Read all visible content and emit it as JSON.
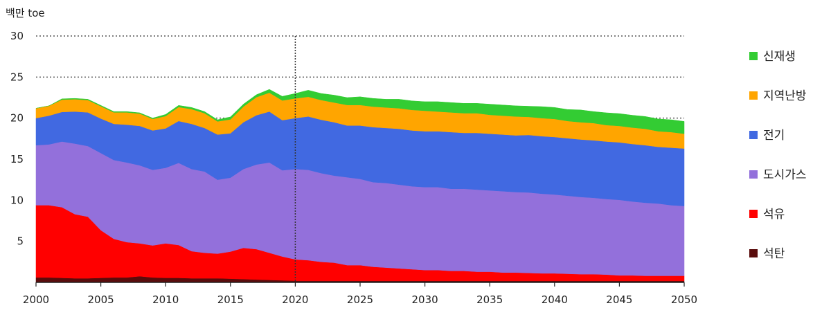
{
  "chart_data": {
    "type": "area",
    "stacked": true,
    "title": "",
    "ylabel": "백만 toe",
    "xlabel": "",
    "xlim": [
      2000,
      2050
    ],
    "ylim": [
      0,
      30
    ],
    "x_ticks": [
      2000,
      2005,
      2010,
      2015,
      2020,
      2025,
      2030,
      2035,
      2040,
      2045,
      2050
    ],
    "y_ticks": [
      5,
      10,
      15,
      20,
      25,
      30
    ],
    "gridlines": [
      20,
      25,
      30
    ],
    "grid_style": "dotted",
    "divider_x": 2020,
    "legend_position": "right",
    "x": [
      2000,
      2001,
      2002,
      2003,
      2004,
      2005,
      2006,
      2007,
      2008,
      2009,
      2010,
      2011,
      2012,
      2013,
      2014,
      2015,
      2016,
      2017,
      2018,
      2019,
      2020,
      2021,
      2022,
      2023,
      2024,
      2025,
      2026,
      2027,
      2028,
      2029,
      2030,
      2031,
      2032,
      2033,
      2034,
      2035,
      2036,
      2037,
      2038,
      2039,
      2040,
      2041,
      2042,
      2043,
      2044,
      2045,
      2046,
      2047,
      2048,
      2049,
      2050
    ],
    "series": [
      {
        "name": "석탄",
        "color": "#5a0c0c",
        "values": [
          0.6,
          0.6,
          0.55,
          0.5,
          0.5,
          0.55,
          0.6,
          0.6,
          0.75,
          0.6,
          0.55,
          0.55,
          0.5,
          0.5,
          0.5,
          0.45,
          0.4,
          0.35,
          0.3,
          0.25,
          0.2,
          0.2,
          0.2,
          0.2,
          0.2,
          0.2,
          0.2,
          0.2,
          0.2,
          0.2,
          0.2,
          0.2,
          0.2,
          0.2,
          0.2,
          0.2,
          0.2,
          0.2,
          0.2,
          0.2,
          0.2,
          0.2,
          0.2,
          0.2,
          0.2,
          0.2,
          0.2,
          0.2,
          0.2,
          0.2,
          0.2
        ]
      },
      {
        "name": "석유",
        "color": "#ff0000",
        "values": [
          8.8,
          8.8,
          8.6,
          7.8,
          7.5,
          5.8,
          4.7,
          4.3,
          4.0,
          3.9,
          4.2,
          4.0,
          3.3,
          3.1,
          3.0,
          3.3,
          3.8,
          3.7,
          3.3,
          2.9,
          2.6,
          2.5,
          2.3,
          2.2,
          1.9,
          1.9,
          1.7,
          1.6,
          1.5,
          1.4,
          1.3,
          1.3,
          1.2,
          1.2,
          1.1,
          1.1,
          1.0,
          1.0,
          0.95,
          0.9,
          0.9,
          0.85,
          0.8,
          0.8,
          0.75,
          0.65,
          0.65,
          0.6,
          0.6,
          0.6,
          0.6
        ]
      },
      {
        "name": "도시가스",
        "color": "#9370db",
        "values": [
          7.3,
          7.4,
          8.0,
          8.6,
          8.6,
          9.4,
          9.6,
          9.7,
          9.5,
          9.2,
          9.2,
          10.0,
          10.0,
          9.9,
          9.0,
          9.0,
          9.6,
          10.3,
          11.0,
          10.5,
          11.0,
          11.0,
          10.8,
          10.6,
          10.7,
          10.5,
          10.3,
          10.3,
          10.2,
          10.1,
          10.1,
          10.1,
          10.0,
          10.0,
          10.0,
          9.9,
          9.9,
          9.8,
          9.8,
          9.7,
          9.6,
          9.5,
          9.4,
          9.3,
          9.2,
          9.2,
          9.0,
          8.9,
          8.8,
          8.6,
          8.5
        ]
      },
      {
        "name": "전기",
        "color": "#4169e1",
        "values": [
          3.3,
          3.5,
          3.6,
          3.9,
          4.1,
          4.2,
          4.4,
          4.6,
          4.8,
          4.8,
          4.8,
          5.1,
          5.5,
          5.3,
          5.5,
          5.4,
          5.7,
          6.0,
          6.2,
          6.1,
          6.2,
          6.5,
          6.5,
          6.5,
          6.3,
          6.5,
          6.7,
          6.7,
          6.8,
          6.8,
          6.8,
          6.8,
          6.9,
          6.8,
          6.9,
          6.9,
          6.9,
          6.9,
          7.0,
          7.0,
          7.0,
          7.0,
          7.0,
          7.0,
          7.0,
          7.0,
          7.0,
          7.0,
          6.9,
          7.0,
          7.0
        ]
      },
      {
        "name": "지역난방",
        "color": "#ffa500",
        "values": [
          1.2,
          1.2,
          1.5,
          1.5,
          1.5,
          1.5,
          1.4,
          1.5,
          1.5,
          1.4,
          1.5,
          1.7,
          1.8,
          1.8,
          1.6,
          1.7,
          1.9,
          2.2,
          2.3,
          2.4,
          2.4,
          2.4,
          2.4,
          2.4,
          2.5,
          2.5,
          2.5,
          2.5,
          2.5,
          2.5,
          2.5,
          2.4,
          2.4,
          2.4,
          2.4,
          2.3,
          2.3,
          2.3,
          2.2,
          2.2,
          2.2,
          2.1,
          2.1,
          2.1,
          2.0,
          2.0,
          2.0,
          2.0,
          1.9,
          1.9,
          1.8
        ]
      },
      {
        "name": "신재생",
        "color": "#33cc33",
        "values": [
          0.0,
          0.0,
          0.1,
          0.1,
          0.1,
          0.1,
          0.1,
          0.1,
          0.1,
          0.1,
          0.2,
          0.2,
          0.2,
          0.2,
          0.2,
          0.3,
          0.3,
          0.3,
          0.4,
          0.5,
          0.6,
          0.8,
          0.8,
          0.9,
          0.9,
          1.0,
          1.0,
          1.0,
          1.1,
          1.1,
          1.1,
          1.2,
          1.2,
          1.2,
          1.2,
          1.3,
          1.3,
          1.3,
          1.3,
          1.4,
          1.4,
          1.4,
          1.5,
          1.4,
          1.5,
          1.5,
          1.5,
          1.5,
          1.5,
          1.5,
          1.5
        ]
      }
    ]
  }
}
